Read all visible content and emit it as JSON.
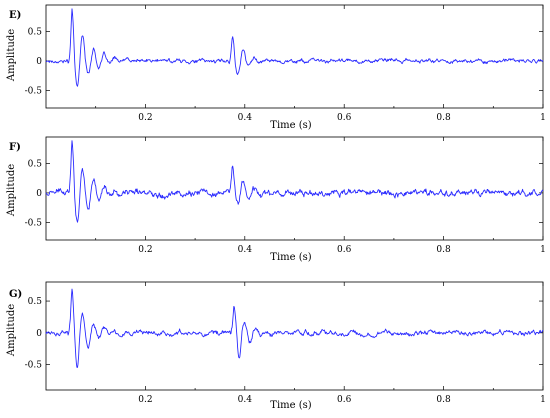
{
  "chart_data": [
    {
      "type": "line",
      "panel_label": "E)",
      "xlabel": "Time (s)",
      "ylabel": "Amplitude",
      "xlim": [
        0.0,
        1.0
      ],
      "ylim": [
        -0.8,
        0.95
      ],
      "xticks": [
        0.2,
        0.4,
        0.6,
        0.8,
        1.0
      ],
      "xtick_labels": [
        "0.2",
        "0.4",
        "0.6",
        "0.8",
        "1"
      ],
      "yticks": [
        0.5,
        0,
        -0.5
      ],
      "ytick_labels": [
        "0.5",
        "0",
        "-0.5"
      ],
      "grid": false,
      "series": [
        {
          "color": "#2b2bff",
          "events": [
            {
              "t": 0.052,
              "peak": 0.92,
              "trough": -0.62,
              "width": 0.055
            },
            {
              "t": 0.375,
              "peak": 0.45,
              "trough": -0.3,
              "width": 0.045
            }
          ],
          "noise": 0.035
        }
      ]
    },
    {
      "type": "line",
      "panel_label": "F)",
      "xlabel": "Time (s)",
      "ylabel": "Amplitude",
      "xlim": [
        0.0,
        1.0
      ],
      "ylim": [
        -0.8,
        0.95
      ],
      "xticks": [
        0.2,
        0.4,
        0.6,
        0.8,
        1.0
      ],
      "xtick_labels": [
        "0.2",
        "0.4",
        "0.6",
        "0.8",
        "1"
      ],
      "yticks": [
        0.5,
        0,
        -0.5
      ],
      "ytick_labels": [
        "0.5",
        "0",
        "-0.5"
      ],
      "grid": false,
      "series": [
        {
          "color": "#2b2bff",
          "events": [
            {
              "t": 0.052,
              "peak": 0.88,
              "trough": -0.62,
              "width": 0.06
            },
            {
              "t": 0.375,
              "peak": 0.48,
              "trough": -0.3,
              "width": 0.045
            }
          ],
          "noise": 0.06
        }
      ]
    },
    {
      "type": "line",
      "panel_label": "G)",
      "xlabel": "Time (s)",
      "ylabel": "Amplitude",
      "xlim": [
        0.0,
        1.0
      ],
      "ylim": [
        -0.9,
        0.8
      ],
      "xticks": [
        0.2,
        0.4,
        0.6,
        0.8,
        1.0
      ],
      "xtick_labels": [
        "0.2",
        "0.4",
        "0.6",
        "0.8",
        "1"
      ],
      "yticks": [
        0.5,
        0,
        -0.5
      ],
      "ytick_labels": [
        "0.5",
        "0",
        "-0.5"
      ],
      "grid": false,
      "series": [
        {
          "color": "#2b2bff",
          "events": [
            {
              "t": 0.052,
              "peak": 0.7,
              "trough": -0.85,
              "width": 0.045
            },
            {
              "t": 0.378,
              "peak": 0.4,
              "trough": -0.65,
              "width": 0.04
            }
          ],
          "noise": 0.04
        }
      ]
    }
  ]
}
